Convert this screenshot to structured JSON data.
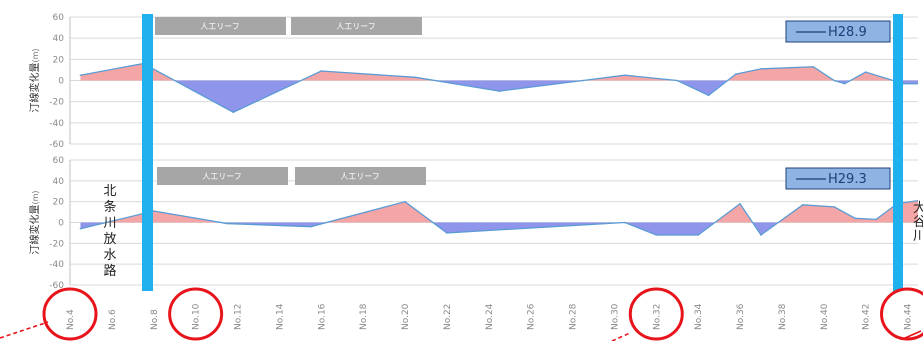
{
  "colors": {
    "positive_fill": "#f4a6a6",
    "negative_fill": "#8f95ea",
    "line": "#5b9bd5",
    "marker_bar": "#1eb1ee",
    "badge": "#a6a6a6",
    "legend_box": "#8eb4e3",
    "highlight_circle": "#e8141b",
    "grid": "#d9d9d9"
  },
  "annotations": {
    "left_vertical": "北条川放水路",
    "right_vertical": "大谷川"
  },
  "chart_data": [
    {
      "type": "area",
      "ylabel": "汀線変化量",
      "ylabel_unit": "(m)",
      "ylim": [
        -60,
        60
      ],
      "yticks": [
        -60,
        -40,
        -20,
        0,
        20,
        40,
        60
      ],
      "grid": true,
      "legend": "top-right",
      "series": [
        {
          "name": "H28.9",
          "x": [
            4.5,
            7.5,
            11.8,
            16,
            20.5,
            24.5,
            28.5,
            30.5,
            33,
            34.5,
            35.8,
            37,
            39.5,
            40.5,
            41,
            42,
            43.8,
            44.5
          ],
          "values": [
            5,
            16,
            -30,
            9,
            3,
            -10,
            0,
            5,
            0,
            -14,
            6,
            11,
            13,
            0,
            -3,
            8,
            -3,
            -3
          ]
        }
      ],
      "badges": [
        "人工リーフ",
        "人工リーフ"
      ]
    },
    {
      "type": "area",
      "ylabel": "汀線変化量",
      "ylabel_unit": "(m)",
      "ylim": [
        -60,
        60
      ],
      "yticks": [
        -60,
        -40,
        -20,
        0,
        20,
        40,
        60
      ],
      "grid": true,
      "legend": "top-right",
      "series": [
        {
          "name": "H29.3",
          "x": [
            4.5,
            8,
            11.5,
            15.5,
            20,
            22,
            30.5,
            32,
            34,
            36,
            37,
            39,
            40.5,
            41.5,
            42.5,
            43.5,
            44.5
          ],
          "values": [
            -6,
            11,
            -1,
            -4,
            20,
            -10,
            0,
            -12,
            -12,
            18,
            -12,
            17,
            15,
            4,
            3,
            18,
            21
          ]
        }
      ],
      "badges": [
        "人工リーフ",
        "人工リーフ"
      ]
    }
  ],
  "x_axis": {
    "ticks": [
      "No.4",
      "No.6",
      "No.8",
      "No.10",
      "No.12",
      "No.14",
      "No.16",
      "No.18",
      "No.20",
      "No.22",
      "No.24",
      "No.26",
      "No.28",
      "No.30",
      "No.32",
      "No.34",
      "No.36",
      "No.38",
      "No.40",
      "No.42",
      "No.44"
    ],
    "range": [
      4,
      44.5
    ],
    "highlighted": [
      "No.4",
      "No.10",
      "No.32",
      "No.44"
    ]
  }
}
